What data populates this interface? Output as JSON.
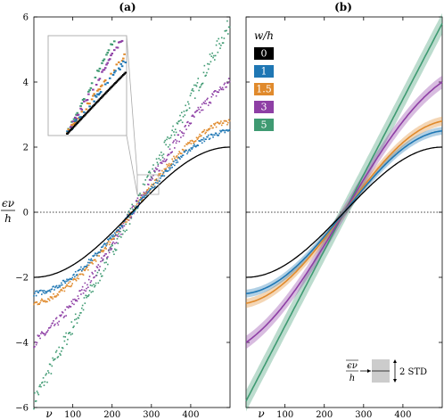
{
  "chart_data": [
    {
      "panel": "(a)",
      "type": "scatter",
      "xlabel": "ν",
      "ylabel_num": "ϵν",
      "ylabel_den": "h",
      "xticks": [
        100,
        200,
        300,
        400
      ],
      "yticks": [
        -6,
        -4,
        -2,
        0,
        2,
        4,
        6
      ],
      "xlim": [
        1,
        500
      ],
      "ylim": [
        -6,
        6
      ],
      "baseline": 0,
      "curve": "-2cos(πν/500)",
      "series": [
        {
          "w_over_h": "0",
          "color": "#000000",
          "endpoints": [
            -2.0,
            2.0
          ]
        },
        {
          "w_over_h": "1",
          "color": "#1f77b4",
          "endpoints": [
            -2.5,
            2.5
          ]
        },
        {
          "w_over_h": "1.5",
          "color": "#e08a2c",
          "endpoints": [
            -2.8,
            2.8
          ]
        },
        {
          "w_over_h": "3",
          "color": "#8e3fa5",
          "endpoints": [
            -4.0,
            4.0
          ]
        },
        {
          "w_over_h": "5",
          "color": "#3f9a72",
          "endpoints": [
            -5.8,
            5.8
          ]
        }
      ],
      "inset": true
    },
    {
      "panel": "(b)",
      "type": "line",
      "xlabel": "ν",
      "xticks": [
        100,
        200,
        300,
        400
      ],
      "xlim": [
        1,
        500
      ],
      "ylim": [
        -6,
        6
      ],
      "legend_title": "w/h",
      "legend": [
        {
          "label": "0",
          "color": "#000000"
        },
        {
          "label": "1",
          "color": "#1f77b4"
        },
        {
          "label": "1.5",
          "color": "#e08a2c"
        },
        {
          "label": "3",
          "color": "#8e3fa5"
        },
        {
          "label": "5",
          "color": "#3f9a72"
        }
      ],
      "band_key_label": "2 STD",
      "band_key_mean_num": "ϵν",
      "band_key_mean_den": "h"
    }
  ]
}
